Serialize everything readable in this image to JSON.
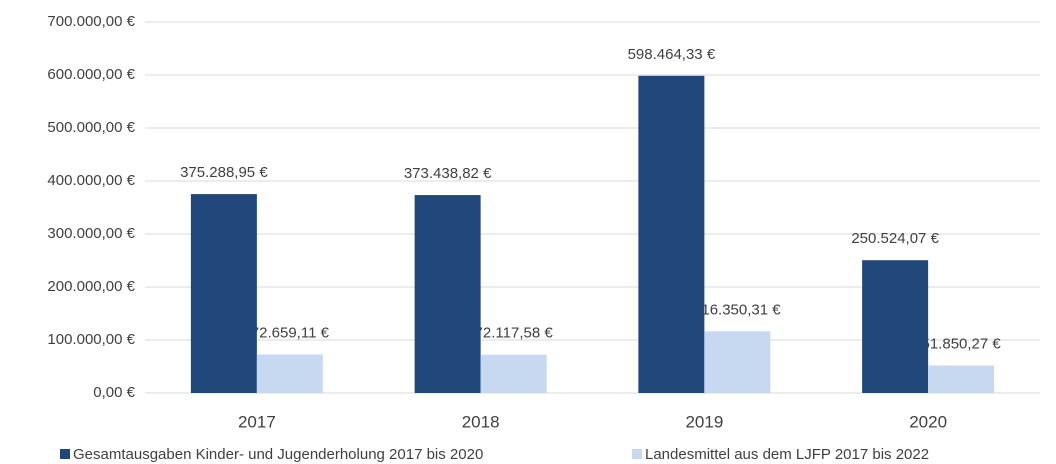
{
  "chart_data": {
    "type": "bar",
    "categories": [
      "2017",
      "2018",
      "2019",
      "2020"
    ],
    "series": [
      {
        "name": "Gesamtausgaben Kinder- und Jugenderholung 2017 bis 2020",
        "color": "#1f477a",
        "values": [
          375288.95,
          373438.82,
          598464.33,
          250524.07
        ],
        "value_labels": [
          "375.288,95 €",
          "373.438,82 €",
          "598.464,33 €",
          "250.524,07 €"
        ]
      },
      {
        "name": "Landesmittel aus dem LJFP 2017 bis 2022",
        "color": "#c6d9f1",
        "values": [
          72659.11,
          72117.58,
          116350.31,
          51850.27
        ],
        "value_labels": [
          "72.659,11 €",
          "72.117,58 €",
          "116.350,31 €",
          "51.850,27 €"
        ]
      }
    ],
    "ylim": [
      0,
      700000
    ],
    "yticks": [
      {
        "value": 0,
        "label": "0,00 €"
      },
      {
        "value": 100000,
        "label": "100.000,00 €"
      },
      {
        "value": 200000,
        "label": "200.000,00 €"
      },
      {
        "value": 300000,
        "label": "300.000,00 €"
      },
      {
        "value": 400000,
        "label": "400.000,00 €"
      },
      {
        "value": 500000,
        "label": "500.000,00 €"
      },
      {
        "value": 600000,
        "label": "600.000,00 €"
      },
      {
        "value": 700000,
        "label": "700.000,00 €"
      }
    ],
    "grid": true
  }
}
